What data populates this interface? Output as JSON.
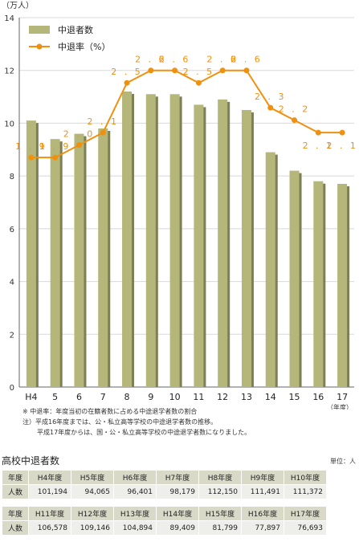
{
  "chart_data": {
    "type": "bar",
    "y_unit_label": "（万人）",
    "x_unit_label": "（年度）",
    "categories": [
      "H4",
      "5",
      "6",
      "7",
      "8",
      "9",
      "10",
      "11",
      "12",
      "13",
      "14",
      "15",
      "16",
      "17"
    ],
    "ylim": [
      0,
      14
    ],
    "yticks": [
      0,
      2,
      4,
      6,
      8,
      10,
      12,
      14
    ],
    "grid": true,
    "legend": "top-left",
    "series": [
      {
        "name": "中退者数",
        "type": "bar",
        "color": "#b5b77a",
        "values": [
          10.1,
          9.4,
          9.6,
          9.8,
          11.2,
          11.1,
          11.1,
          10.7,
          10.9,
          10.5,
          8.9,
          8.2,
          7.8,
          7.7
        ]
      },
      {
        "name": "中退率（%）",
        "type": "line",
        "color": "#f0900f",
        "values": [
          1.9,
          1.9,
          2.0,
          2.1,
          2.5,
          2.6,
          2.6,
          2.5,
          2.6,
          2.6,
          2.3,
          2.2,
          2.1,
          2.1
        ],
        "labels": [
          "1.9",
          "1.9",
          "2.0",
          "2.1",
          "2.5",
          "2.6",
          "2.6",
          "2.5",
          "2.6",
          "2.6",
          "2.3",
          "2.2",
          "2.1",
          "2.1"
        ]
      }
    ]
  },
  "notes": {
    "line1": "※ 中退率：年度当初の在籍者数に占める中途退学者数の割合",
    "line2": "注）平成16年度までは、公・私立高等学校の中途退学者数の推移。",
    "line3": "平成17年度からは、国・公・私立高等学校の中途退学者数になりました。"
  },
  "table": {
    "title": "高校中退者数",
    "unit": "単位：人",
    "header_label": "年度",
    "row_label": "人数",
    "row1": {
      "years": [
        "H4年度",
        "H5年度",
        "H6年度",
        "H7年度",
        "H8年度",
        "H9年度",
        "H10年度"
      ],
      "counts": [
        "101,194",
        "94,065",
        "96,401",
        "98,179",
        "112,150",
        "111,491",
        "111,372"
      ]
    },
    "row2": {
      "years": [
        "H11年度",
        "H12年度",
        "H13年度",
        "H14年度",
        "H15年度",
        "H16年度",
        "H17年度"
      ],
      "counts": [
        "106,578",
        "109,146",
        "104,894",
        "89,409",
        "81,799",
        "77,897",
        "76,693"
      ]
    }
  }
}
